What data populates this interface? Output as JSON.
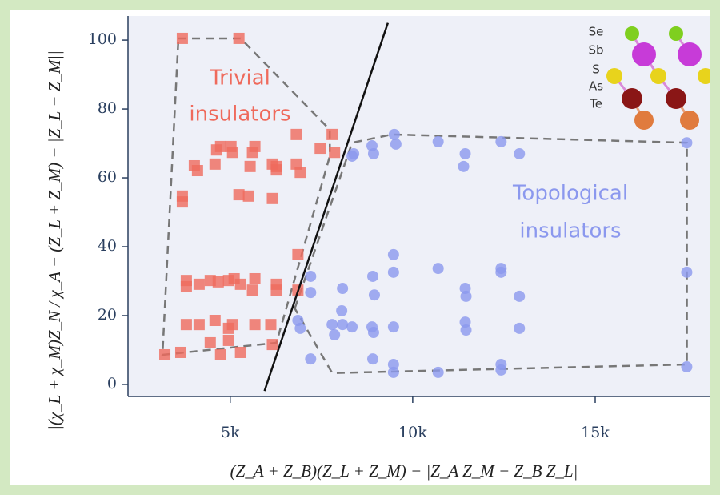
{
  "chart_data": {
    "type": "scatter",
    "xlabel": "(Z_A + Z_B)(Z_L + Z_M) − |Z_A Z_M − Z_B Z_L|",
    "ylabel": "|(χ_L + χ_M)Z_N / χ_A − (Z_L + Z_M) − |Z_L − Z_M||",
    "xlim": [
      2200,
      18200
    ],
    "ylim": [
      -3.5,
      107
    ],
    "xticks": [
      {
        "value": 5000,
        "label": "5k"
      },
      {
        "value": 10000,
        "label": "10k"
      },
      {
        "value": 15000,
        "label": "15k"
      }
    ],
    "yticks": [
      0,
      20,
      40,
      60,
      80,
      100
    ],
    "grid": false,
    "series": [
      {
        "marker": "square",
        "color": "#ef6a5c",
        "x": [
          3689,
          5239,
          3689,
          3689,
          4104,
          4017,
          4584,
          4628,
          4737,
          5021,
          5065,
          5676,
          5610,
          5545,
          6156,
          6265,
          6265,
          6811,
          6811,
          6920,
          7466,
          7793,
          7859,
          5239,
          5501,
          6156,
          3798,
          3798,
          4148,
          4453,
          4672,
          4955,
          5108,
          5283,
          5676,
          5610,
          6265,
          6265,
          6855,
          3798,
          4148,
          4584,
          4955,
          5065,
          5676,
          6112,
          6855,
          3209,
          3646,
          4737,
          5283,
          6156,
          4453,
          4955
        ],
        "y": [
          100.5,
          100.5,
          54.7,
          53,
          62.1,
          63.5,
          64,
          68.1,
          69.1,
          69.1,
          67.4,
          69.1,
          67.4,
          63.3,
          64,
          62.3,
          63.3,
          72.6,
          64,
          61.6,
          68.6,
          72.6,
          67.4,
          55.1,
          54.7,
          54,
          30.2,
          28.4,
          29.1,
          30.2,
          29.8,
          30.2,
          30.7,
          29.1,
          30.7,
          27.4,
          29.1,
          27.4,
          37.7,
          17.4,
          17.4,
          18.6,
          16.3,
          17.4,
          17.4,
          17.4,
          27.4,
          8.6,
          9.3,
          8.6,
          9.3,
          11.6,
          12.1,
          12.8
        ]
      },
      {
        "marker": "circle",
        "color": "#8b98ee",
        "x": [
          8339,
          8383,
          8885,
          8928,
          9496,
          9540,
          10697,
          11439,
          11395,
          12421,
          12923,
          17508,
          7204,
          7204,
          8077,
          8055,
          8907,
          8950,
          9474,
          9474,
          10697,
          11439,
          11461,
          12421,
          12421,
          12923,
          17508,
          6855,
          6920,
          7793,
          7859,
          8077,
          8339,
          8885,
          8928,
          9474,
          11439,
          11461,
          12923,
          7204,
          8907,
          9474,
          9474,
          10697,
          12421,
          12421,
          17508
        ],
        "y": [
          66.3,
          67,
          69.3,
          67,
          72.6,
          69.8,
          70.5,
          67,
          63.3,
          70.5,
          67,
          70.2,
          31.4,
          26.7,
          27.9,
          21.4,
          31.4,
          26,
          32.6,
          37.7,
          33.7,
          27.9,
          25.6,
          33.7,
          32.6,
          25.6,
          32.6,
          18.6,
          16.3,
          17.4,
          14.4,
          17.4,
          16.7,
          16.7,
          15.1,
          16.7,
          18.1,
          15.8,
          16.3,
          7.4,
          7.4,
          5.8,
          3.5,
          3.5,
          5.8,
          4.2,
          5.1
        ]
      }
    ],
    "hulls": [
      {
        "x": [
          3581,
          5284,
          7729,
          7729,
          6266,
          3144
        ],
        "y": [
          100.5,
          100.5,
          74,
          66.3,
          12.1,
          8.6
        ]
      },
      {
        "x": [
          6769,
          8341,
          9432,
          17511,
          17511,
          7795
        ],
        "y": [
          22.1,
          70.2,
          72.6,
          70.2,
          5.8,
          3.3
        ]
      }
    ],
    "boundary": {
      "x": [
        5940,
        9320
      ],
      "y": [
        -1.9,
        105
      ]
    },
    "annotations": [
      {
        "lines": [
          "Trivial",
          "insulators"
        ],
        "color": "#ef6a5c"
      },
      {
        "lines": [
          "Topological",
          "insulators"
        ],
        "color": "#8b98ee"
      }
    ],
    "elements": [
      "Se",
      "Sb",
      "S",
      "As",
      "Te"
    ]
  }
}
